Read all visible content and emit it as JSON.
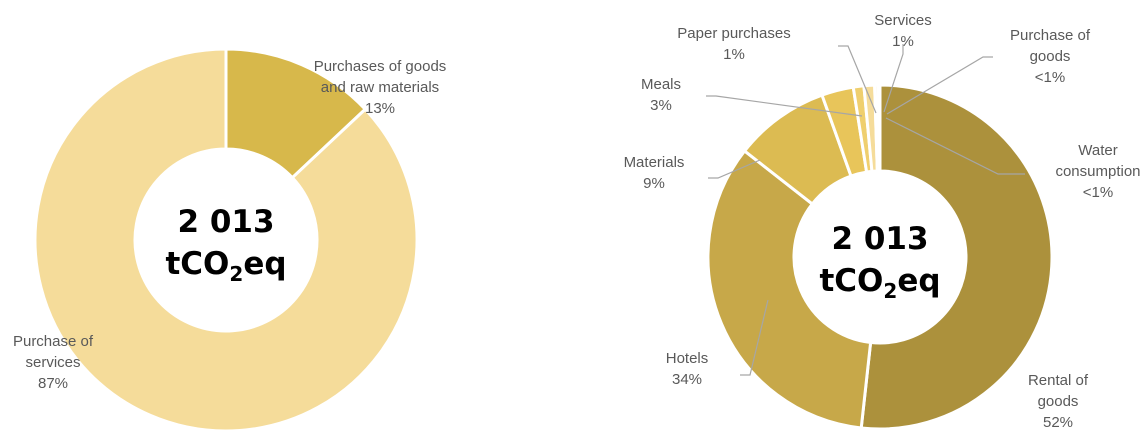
{
  "chart_data": [
    {
      "type": "pie",
      "center_label": {
        "line1": "2 013",
        "line2_main": "tCO",
        "line2_sub": "2",
        "line2_end": "eq"
      },
      "slices": [
        {
          "label_lines": [
            "Purchases of goods",
            "and raw materials"
          ],
          "pct_text": "13%",
          "value": 13,
          "color": "#D7B84B"
        },
        {
          "label_lines": [
            "Purchase of",
            "services"
          ],
          "pct_text": "87%",
          "value": 87,
          "color": "#F5DC9A"
        }
      ]
    },
    {
      "type": "pie",
      "center_label": {
        "line1": "2 013",
        "line2_main": "tCO",
        "line2_sub": "2",
        "line2_end": "eq"
      },
      "slices": [
        {
          "label_lines": [
            "Rental of",
            "goods"
          ],
          "pct_text": "52%",
          "value": 52,
          "color": "#AC913C"
        },
        {
          "label_lines": [
            "Hotels"
          ],
          "pct_text": "34%",
          "value": 34,
          "color": "#C7A849"
        },
        {
          "label_lines": [
            "Materials"
          ],
          "pct_text": "9%",
          "value": 9,
          "color": "#DCBB52"
        },
        {
          "label_lines": [
            "Meals"
          ],
          "pct_text": "3%",
          "value": 3,
          "color": "#E8C55A"
        },
        {
          "label_lines": [
            "Paper purchases"
          ],
          "pct_text": "1%",
          "value": 1,
          "color": "#EFCF6E"
        },
        {
          "label_lines": [
            "Services"
          ],
          "pct_text": "1%",
          "value": 1,
          "color": "#F5DC9A"
        },
        {
          "label_lines": [
            "Purchase of",
            "goods"
          ],
          "pct_text": "<1%",
          "value": 0.3,
          "color": "#F9E6B4"
        },
        {
          "label_lines": [
            "Water",
            "consumption"
          ],
          "pct_text": "<1%",
          "value": 0.2,
          "color": "#FBEEC8"
        }
      ]
    }
  ]
}
